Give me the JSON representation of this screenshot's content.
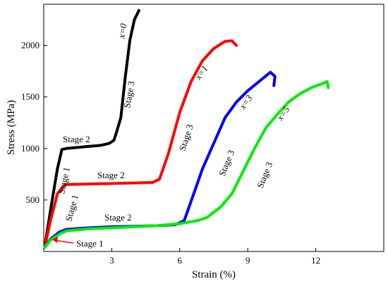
{
  "chart_data": {
    "type": "line",
    "title": "",
    "xlabel": "Strain (%)",
    "ylabel": "Stress (MPa)",
    "xlim": [
      0,
      15
    ],
    "ylim": [
      0,
      2400
    ],
    "xticks": [
      3,
      6,
      9,
      12
    ],
    "yticks": [
      500,
      1000,
      1500,
      2000
    ],
    "xtick_labels": [
      "3",
      "6",
      "9",
      "12"
    ],
    "ytick_labels": [
      "500",
      "1000",
      "1500",
      "2000"
    ],
    "grid": false,
    "legend": "none",
    "series": [
      {
        "name": "x=0",
        "color": "#000000",
        "x": [
          0.05,
          0.3,
          0.6,
          0.8,
          1.0,
          1.5,
          2.0,
          2.5,
          2.9,
          3.1,
          3.2,
          3.4,
          3.6,
          3.8,
          4.0,
          4.2
        ],
        "y": [
          50,
          400,
          800,
          990,
          1000,
          1010,
          1020,
          1030,
          1050,
          1080,
          1150,
          1300,
          1700,
          2050,
          2250,
          2340
        ]
      },
      {
        "name": "x=1",
        "color": "#ff0000",
        "x": [
          0.05,
          0.3,
          0.6,
          0.9,
          1.0,
          2.0,
          3.0,
          4.0,
          4.8,
          5.1,
          5.5,
          6.0,
          6.5,
          7.0,
          7.5,
          8.0,
          8.3,
          8.5
        ],
        "y": [
          50,
          300,
          560,
          640,
          650,
          655,
          660,
          665,
          670,
          700,
          950,
          1350,
          1650,
          1850,
          1970,
          2040,
          2045,
          2000
        ]
      },
      {
        "name": "x=3",
        "color": "#0000ff",
        "x": [
          0.05,
          0.3,
          0.7,
          1.0,
          2.0,
          3.0,
          4.0,
          5.0,
          5.8,
          6.2,
          6.6,
          7.0,
          7.5,
          8.0,
          8.5,
          9.0,
          9.5,
          10.0,
          10.2,
          10.15
        ],
        "y": [
          40,
          120,
          190,
          215,
          230,
          240,
          245,
          250,
          260,
          300,
          550,
          800,
          1050,
          1300,
          1450,
          1560,
          1650,
          1740,
          1700,
          1610
        ]
      },
      {
        "name": "x=5",
        "color": "#00ee00",
        "x": [
          0.05,
          0.3,
          0.7,
          1.0,
          2.0,
          3.0,
          4.0,
          5.0,
          6.0,
          6.8,
          7.2,
          7.8,
          8.3,
          8.8,
          9.3,
          9.8,
          10.3,
          10.8,
          11.3,
          11.8,
          12.3,
          12.5,
          12.55
        ],
        "y": [
          40,
          110,
          170,
          200,
          220,
          230,
          240,
          250,
          270,
          300,
          330,
          430,
          560,
          780,
          1000,
          1200,
          1330,
          1450,
          1530,
          1590,
          1630,
          1650,
          1590
        ]
      }
    ],
    "annotations": {
      "series_labels": [
        "x=0",
        "x=1",
        "x=3",
        "x=5"
      ],
      "stage1": "Stage 1",
      "stage2": "Stage 2",
      "stage3": "Stage 3"
    }
  }
}
